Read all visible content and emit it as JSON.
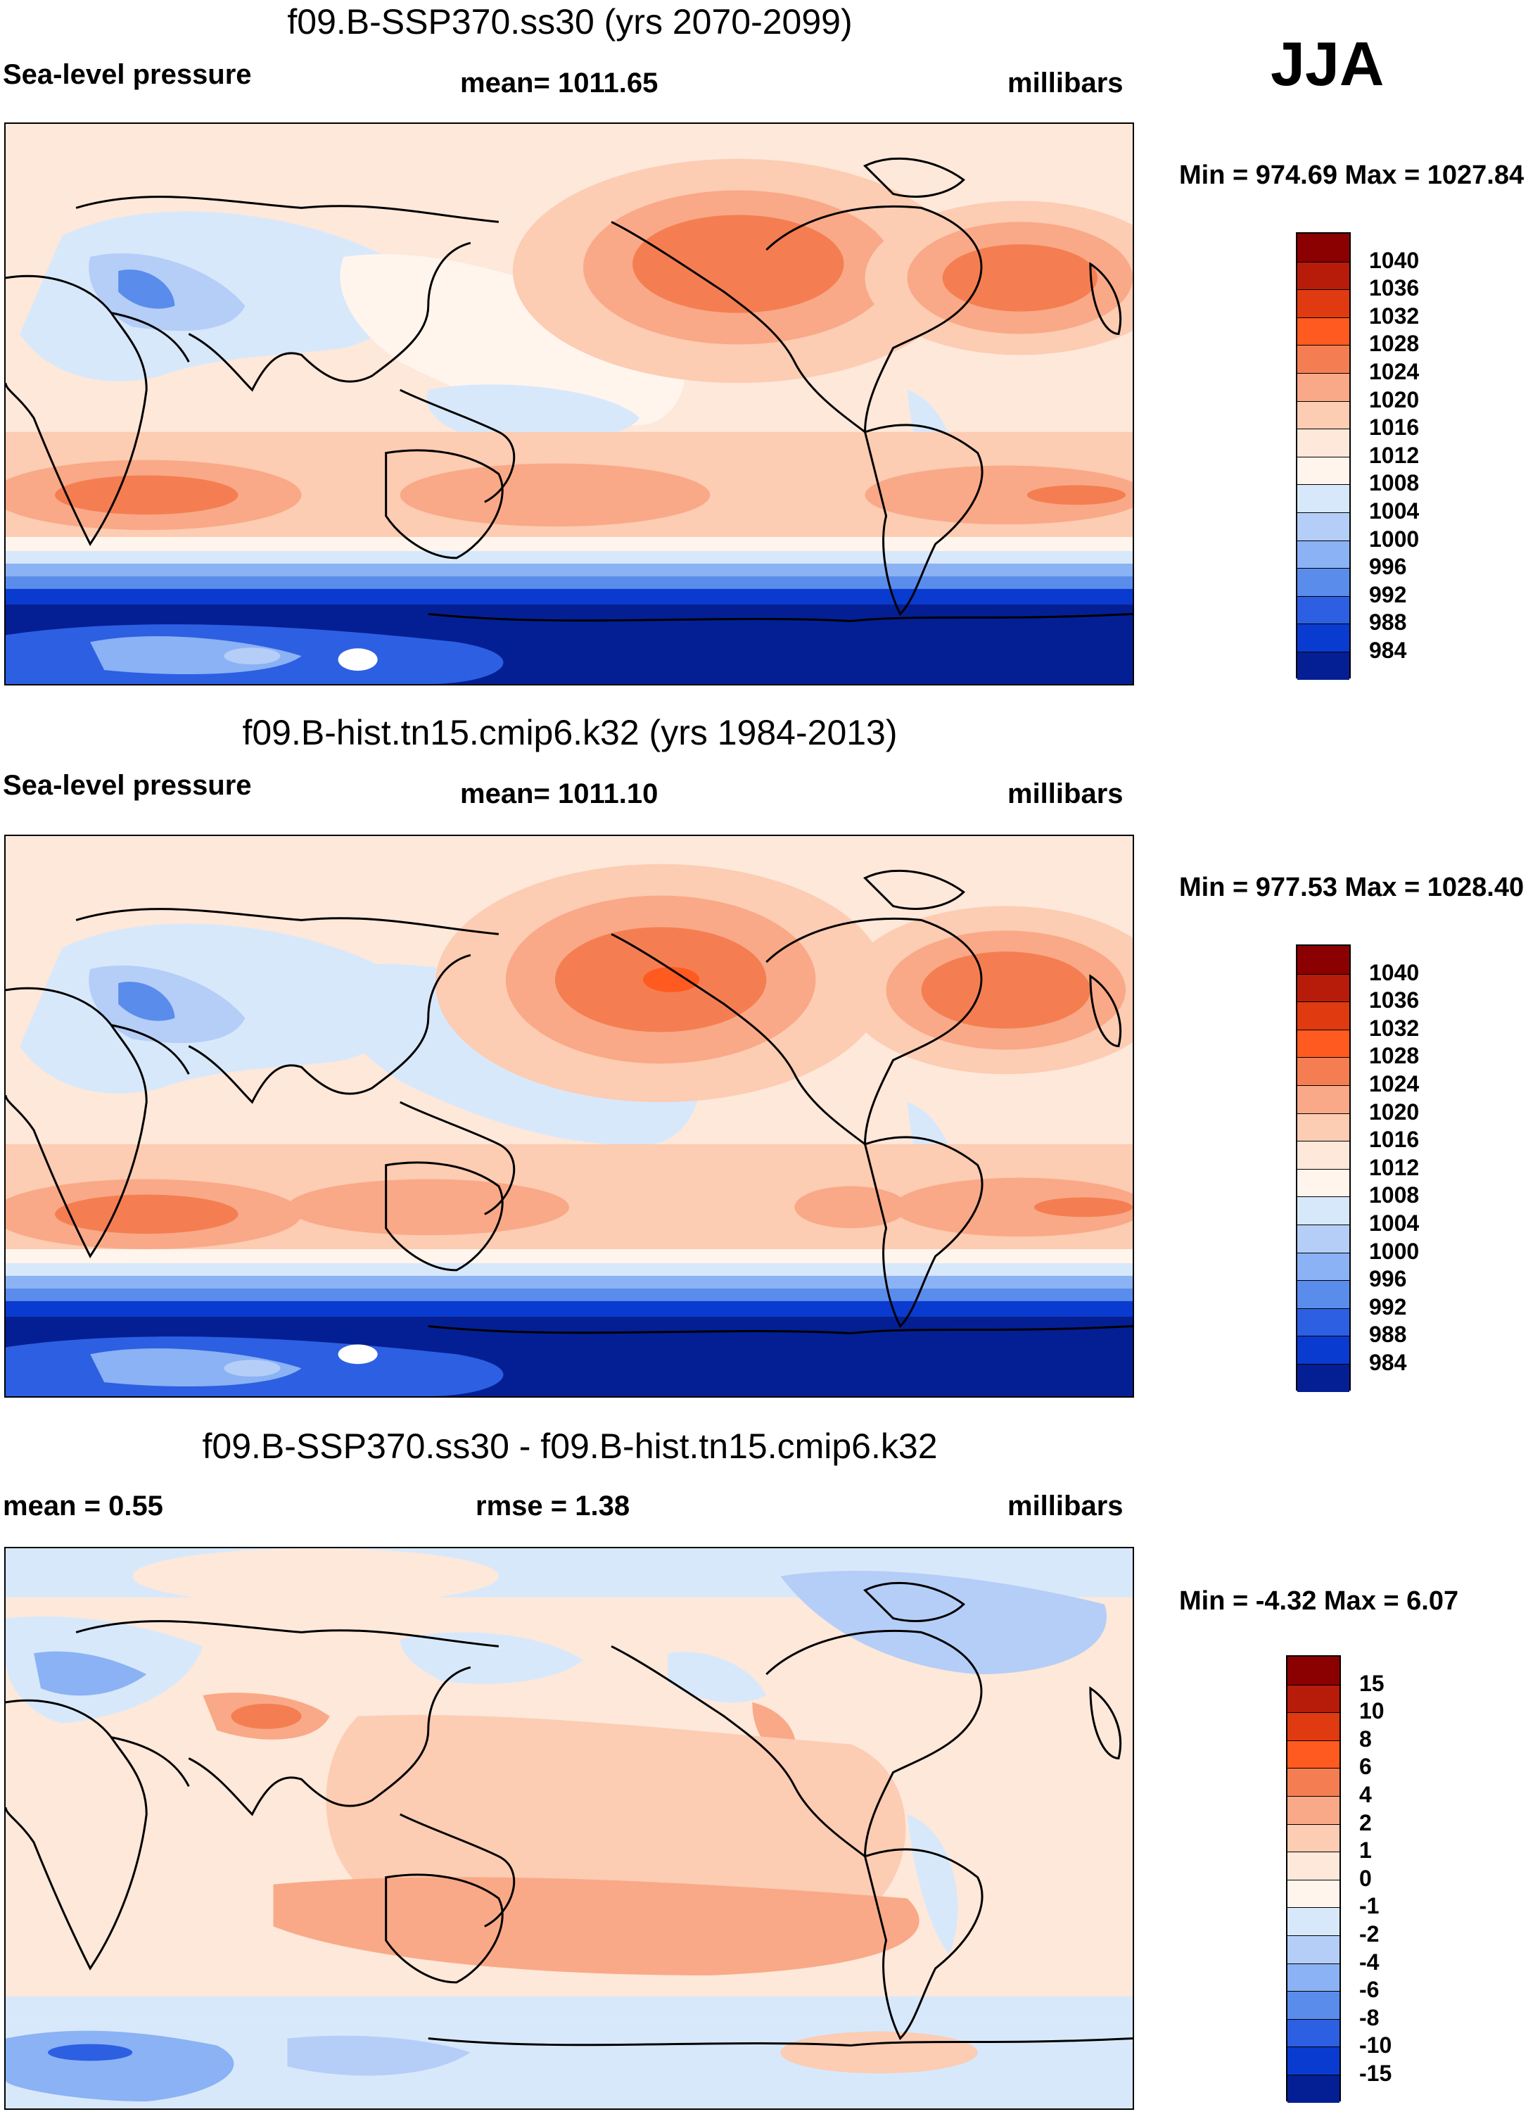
{
  "season": "JJA",
  "panels": [
    {
      "title": "f09.B-SSP370.ss30 (yrs 2070-2099)",
      "left_label": "Sea-level pressure",
      "center_label": "mean= 1011.65",
      "right_label": "millibars",
      "minmax": "Min = 974.69 Max = 1027.84",
      "colorbar": {
        "levels": [
          "1040",
          "1036",
          "1032",
          "1028",
          "1024",
          "1020",
          "1016",
          "1012",
          "1008",
          "1004",
          "1000",
          "996",
          "992",
          "988",
          "984"
        ],
        "colors": [
          "#8b0000",
          "#b71c0a",
          "#df3a10",
          "#ff5a1f",
          "#f47e52",
          "#f9a987",
          "#fcccb3",
          "#fde8da",
          "#fff5ed",
          "#d8e8fb",
          "#b5cef8",
          "#8ab2f4",
          "#5a8cec",
          "#2d5fe2",
          "#0a3bd0",
          "#041f94"
        ]
      }
    },
    {
      "title": "f09.B-hist.tn15.cmip6.k32 (yrs 1984-2013)",
      "left_label": "Sea-level pressure",
      "center_label": "mean= 1011.10",
      "right_label": "millibars",
      "minmax": "Min = 977.53 Max = 1028.40",
      "colorbar": {
        "levels": [
          "1040",
          "1036",
          "1032",
          "1028",
          "1024",
          "1020",
          "1016",
          "1012",
          "1008",
          "1004",
          "1000",
          "996",
          "992",
          "988",
          "984"
        ],
        "colors": [
          "#8b0000",
          "#b71c0a",
          "#df3a10",
          "#ff5a1f",
          "#f47e52",
          "#f9a987",
          "#fcccb3",
          "#fde8da",
          "#fff5ed",
          "#d8e8fb",
          "#b5cef8",
          "#8ab2f4",
          "#5a8cec",
          "#2d5fe2",
          "#0a3bd0",
          "#041f94"
        ]
      }
    },
    {
      "title": "f09.B-SSP370.ss30 - f09.B-hist.tn15.cmip6.k32",
      "left_label": "mean =   0.55",
      "center_label": "rmse =   1.38",
      "right_label": "millibars",
      "minmax": "Min =  -4.32 Max =   6.07",
      "colorbar": {
        "levels": [
          "15",
          "10",
          "8",
          "6",
          "4",
          "2",
          "1",
          "0",
          "-1",
          "-2",
          "-4",
          "-6",
          "-8",
          "-10",
          "-15"
        ],
        "colors": [
          "#8b0000",
          "#b71c0a",
          "#df3a10",
          "#ff5a1f",
          "#f47e52",
          "#f9a987",
          "#fcccb3",
          "#fde8da",
          "#fff5ed",
          "#d8e8fb",
          "#b5cef8",
          "#8ab2f4",
          "#5a8cec",
          "#2d5fe2",
          "#0a3bd0",
          "#041f94"
        ]
      }
    }
  ]
}
